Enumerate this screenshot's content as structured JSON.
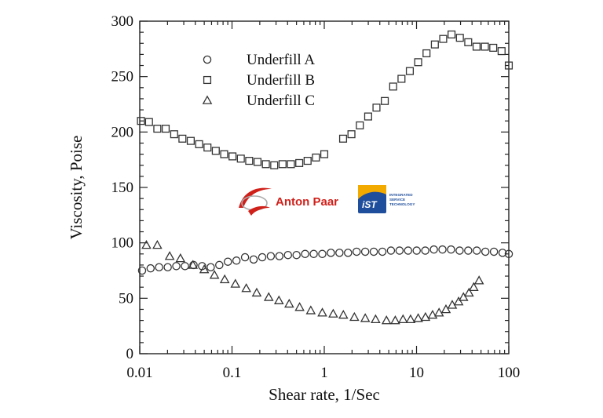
{
  "chart_data": {
    "type": "scatter",
    "title": "",
    "xlabel": "Shear rate, 1/Sec",
    "ylabel": "Viscosity, Poise",
    "xscale": "log",
    "xlim": [
      0.01,
      100
    ],
    "ylim": [
      0,
      300
    ],
    "xticks": [
      {
        "value": 0.01,
        "label": "0.01"
      },
      {
        "value": 0.1,
        "label": "0.1"
      },
      {
        "value": 1,
        "label": "1"
      },
      {
        "value": 10,
        "label": "10"
      },
      {
        "value": 100,
        "label": "100"
      }
    ],
    "yticks": [
      {
        "value": 0,
        "label": "0"
      },
      {
        "value": 50,
        "label": "50"
      },
      {
        "value": 100,
        "label": "100"
      },
      {
        "value": 150,
        "label": "150"
      },
      {
        "value": 200,
        "label": "200"
      },
      {
        "value": 250,
        "label": "250"
      },
      {
        "value": 300,
        "label": "300"
      }
    ],
    "grid": false,
    "legend_position": "top-left",
    "series": [
      {
        "name": "Underfill A",
        "marker": "circle",
        "x": [
          0.0106,
          0.0131,
          0.0162,
          0.0201,
          0.0249,
          0.0309,
          0.0383,
          0.0474,
          0.0588,
          0.0728,
          0.0902,
          0.1117,
          0.1384,
          0.1715,
          0.2125,
          0.2632,
          0.3261,
          0.404,
          0.5005,
          0.6201,
          0.7682,
          0.9518,
          1.1792,
          1.461,
          1.81,
          2.242,
          2.778,
          3.441,
          4.263,
          5.282,
          6.544,
          8.107,
          10.04,
          12.44,
          15.42,
          19.1,
          23.66,
          29.31,
          36.32,
          45.0,
          55.75,
          69.07,
          85.57,
          100
        ],
        "y": [
          75,
          77,
          78,
          78,
          79,
          79,
          80,
          79,
          78,
          80,
          83,
          84,
          87,
          85,
          87,
          88,
          88,
          89,
          89,
          90,
          90,
          90,
          91,
          91,
          91,
          92,
          92,
          92,
          92,
          93,
          93,
          93,
          93,
          93,
          94,
          94,
          94,
          93,
          93,
          93,
          92,
          92,
          91,
          90
        ]
      },
      {
        "name": "Underfill B",
        "marker": "square",
        "x": [
          0.0103,
          0.0126,
          0.0155,
          0.0191,
          0.0236,
          0.029,
          0.0357,
          0.044,
          0.0542,
          0.0667,
          0.0822,
          0.1012,
          0.1246,
          0.1535,
          0.189,
          0.2328,
          0.2867,
          0.3531,
          0.4349,
          0.5356,
          0.6596,
          0.8124,
          1.0,
          1.6,
          1.97,
          2.43,
          2.99,
          3.68,
          4.53,
          5.58,
          6.87,
          8.46,
          10.42,
          12.83,
          15.8,
          19.46,
          23.96,
          29.51,
          36.34,
          44.75,
          55.11,
          67.87,
          83.58,
          100
        ],
        "y": [
          210,
          209,
          203,
          203,
          198,
          194,
          192,
          189,
          186,
          183,
          180,
          178,
          176,
          174,
          173,
          171,
          170,
          171,
          171,
          172,
          174,
          177,
          180,
          194,
          198,
          206,
          214,
          222,
          228,
          241,
          248,
          255,
          263,
          271,
          279,
          284,
          288,
          285,
          281,
          277,
          277,
          276,
          273,
          260
        ]
      },
      {
        "name": "Underfill C",
        "marker": "triangle",
        "x": [
          0.0118,
          0.0155,
          0.0211,
          0.0276,
          0.0377,
          0.05,
          0.0645,
          0.0833,
          0.1087,
          0.1428,
          0.1852,
          0.25,
          0.3226,
          0.4167,
          0.5405,
          0.7143,
          0.9524,
          1.25,
          1.61,
          2.12,
          2.78,
          3.6,
          4.72,
          5.88,
          7.14,
          8.62,
          10.42,
          12.5,
          14.93,
          17.54,
          20.83,
          24.39,
          28.57,
          32.26,
          37.04,
          41.67,
          47.62
        ],
        "y": [
          98,
          98,
          88,
          86,
          80,
          76,
          71,
          67,
          63,
          59,
          55,
          51,
          48,
          45,
          42,
          39,
          37,
          36,
          35,
          33,
          32,
          31,
          30,
          30,
          31,
          31,
          32,
          33,
          35,
          37,
          40,
          44,
          47,
          51,
          55,
          60,
          66
        ]
      }
    ]
  },
  "logos": {
    "anton_paar": {
      "text": "Anton Paar",
      "color": "#d0201a"
    },
    "ist": {
      "text": "iST",
      "lines": [
        "INTEGRATED",
        "SERVICE",
        "TECHNOLOGY"
      ],
      "color": "#1f4e9c",
      "accent": "#f2a900"
    }
  }
}
